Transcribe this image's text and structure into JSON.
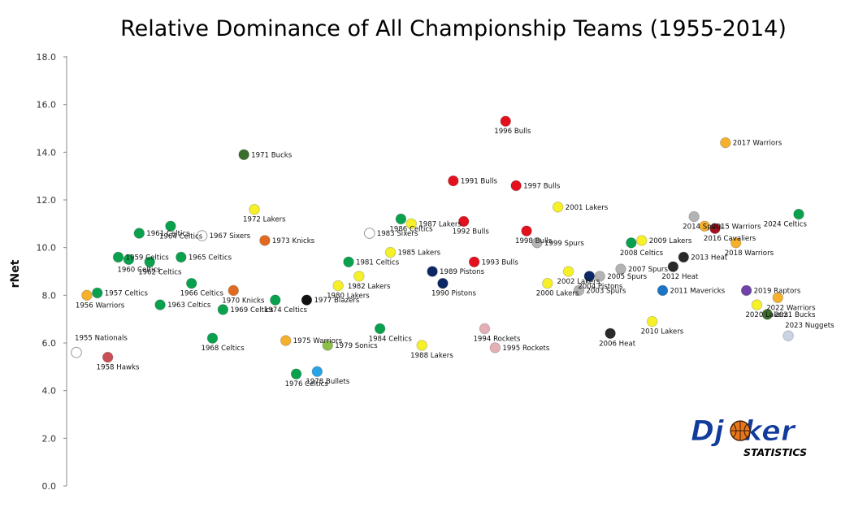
{
  "chart_data": {
    "type": "scatter",
    "title": "Relative Dominance of All Championship Teams (1955-2014)",
    "ylabel": "rNet",
    "ylim": [
      0,
      18
    ],
    "yticks": [
      "0.0",
      "2.0",
      "4.0",
      "6.0",
      "8.0",
      "10.0",
      "12.0",
      "14.0",
      "16.0",
      "18.0"
    ],
    "grid": false,
    "points": [
      {
        "label": "1955 Nationals",
        "x": 1955,
        "y": 5.6,
        "color": "#ffffff"
      },
      {
        "label": "1956 Warriors",
        "x": 1956,
        "y": 8.0,
        "color": "#f5b02e"
      },
      {
        "label": "1957 Celtics",
        "x": 1957,
        "y": 8.1,
        "color": "#0aa14e"
      },
      {
        "label": "1958 Hawks",
        "x": 1958,
        "y": 5.4,
        "color": "#c74f55"
      },
      {
        "label": "1959 Celtics",
        "x": 1959,
        "y": 9.6,
        "color": "#0aa14e"
      },
      {
        "label": "1960 Celtics",
        "x": 1960,
        "y": 9.5,
        "color": "#0aa14e"
      },
      {
        "label": "1961 Celtics",
        "x": 1961,
        "y": 10.6,
        "color": "#0aa14e"
      },
      {
        "label": "1962 Celtics",
        "x": 1962,
        "y": 9.4,
        "color": "#0aa14e"
      },
      {
        "label": "1963 Celtics",
        "x": 1963,
        "y": 7.6,
        "color": "#0aa14e"
      },
      {
        "label": "1964 Celtics",
        "x": 1964,
        "y": 10.9,
        "color": "#0aa14e"
      },
      {
        "label": "1965 Celtics",
        "x": 1965,
        "y": 9.6,
        "color": "#0aa14e"
      },
      {
        "label": "1966 Celtics",
        "x": 1966,
        "y": 8.5,
        "color": "#0aa14e"
      },
      {
        "label": "1967 Sixers",
        "x": 1967,
        "y": 10.5,
        "color": "#ffffff"
      },
      {
        "label": "1968 Celtics",
        "x": 1968,
        "y": 6.2,
        "color": "#0aa14e"
      },
      {
        "label": "1969 Celtics",
        "x": 1969,
        "y": 7.4,
        "color": "#0aa14e"
      },
      {
        "label": "1970 Knicks",
        "x": 1970,
        "y": 8.2,
        "color": "#e06b1f"
      },
      {
        "label": "1971 Bucks",
        "x": 1971,
        "y": 13.9,
        "color": "#3b6e2a"
      },
      {
        "label": "1972 Lakers",
        "x": 1972,
        "y": 11.6,
        "color": "#f6f028"
      },
      {
        "label": "1973 Knicks",
        "x": 1973,
        "y": 10.3,
        "color": "#e06b1f"
      },
      {
        "label": "1974 Celtics",
        "x": 1974,
        "y": 7.8,
        "color": "#0aa14e"
      },
      {
        "label": "1975 Warriors",
        "x": 1975,
        "y": 6.1,
        "color": "#f5b02e"
      },
      {
        "label": "1976 Celtics",
        "x": 1976,
        "y": 4.7,
        "color": "#0aa14e"
      },
      {
        "label": "1977 Blazers",
        "x": 1977,
        "y": 7.8,
        "color": "#111111"
      },
      {
        "label": "1978 Bullets",
        "x": 1978,
        "y": 4.8,
        "color": "#28a3e6"
      },
      {
        "label": "1979 Sonics",
        "x": 1979,
        "y": 5.9,
        "color": "#8cc04b"
      },
      {
        "label": "1980 Lakers",
        "x": 1980,
        "y": 8.4,
        "color": "#f6f028"
      },
      {
        "label": "1981 Celtics",
        "x": 1981,
        "y": 9.4,
        "color": "#0aa14e"
      },
      {
        "label": "1982 Lakers",
        "x": 1982,
        "y": 8.8,
        "color": "#f6f028"
      },
      {
        "label": "1983 Sixers",
        "x": 1983,
        "y": 10.6,
        "color": "#ffffff"
      },
      {
        "label": "1984 Celtics",
        "x": 1984,
        "y": 6.6,
        "color": "#0aa14e"
      },
      {
        "label": "1985 Lakers",
        "x": 1985,
        "y": 9.8,
        "color": "#f6f028"
      },
      {
        "label": "1986 Celtics",
        "x": 1986,
        "y": 11.2,
        "color": "#0aa14e"
      },
      {
        "label": "1987 Lakers",
        "x": 1987,
        "y": 11.0,
        "color": "#f6f028"
      },
      {
        "label": "1988 Lakers",
        "x": 1988,
        "y": 5.9,
        "color": "#f6f028"
      },
      {
        "label": "1989 Pistons",
        "x": 1989,
        "y": 9.0,
        "color": "#0c2765"
      },
      {
        "label": "1990 Pistons",
        "x": 1990,
        "y": 8.5,
        "color": "#0c2765"
      },
      {
        "label": "1991 Bulls",
        "x": 1991,
        "y": 12.8,
        "color": "#e3101e"
      },
      {
        "label": "1992 Bulls",
        "x": 1992,
        "y": 11.1,
        "color": "#e3101e"
      },
      {
        "label": "1993 Bulls",
        "x": 1993,
        "y": 9.4,
        "color": "#e3101e"
      },
      {
        "label": "1994 Rockets",
        "x": 1994,
        "y": 6.6,
        "color": "#e3b0b6"
      },
      {
        "label": "1995 Rockets",
        "x": 1995,
        "y": 5.8,
        "color": "#e3b0b6"
      },
      {
        "label": "1996 Bulls",
        "x": 1996,
        "y": 15.3,
        "color": "#e3101e"
      },
      {
        "label": "1997 Bulls",
        "x": 1997,
        "y": 12.6,
        "color": "#e3101e"
      },
      {
        "label": "1998 Bulls",
        "x": 1998,
        "y": 10.7,
        "color": "#e3101e"
      },
      {
        "label": "1999 Spurs",
        "x": 1999,
        "y": 10.2,
        "color": "#b3b3b3"
      },
      {
        "label": "2000 Lakers",
        "x": 2000,
        "y": 8.5,
        "color": "#f6f028"
      },
      {
        "label": "2001 Lakers",
        "x": 2001,
        "y": 11.7,
        "color": "#f6f028"
      },
      {
        "label": "2002 Lakers",
        "x": 2002,
        "y": 9.0,
        "color": "#f6f028"
      },
      {
        "label": "2003 Spurs",
        "x": 2003,
        "y": 8.2,
        "color": "#b3b3b3"
      },
      {
        "label": "2004 Pistons",
        "x": 2004,
        "y": 8.8,
        "color": "#0c2765"
      },
      {
        "label": "2005 Spurs",
        "x": 2005,
        "y": 8.8,
        "color": "#b3b3b3"
      },
      {
        "label": "2006 Heat",
        "x": 2006,
        "y": 6.4,
        "color": "#2a2a2a"
      },
      {
        "label": "2007 Spurs",
        "x": 2007,
        "y": 9.1,
        "color": "#b3b3b3"
      },
      {
        "label": "2008 Celtics",
        "x": 2008,
        "y": 10.2,
        "color": "#0aa14e"
      },
      {
        "label": "2009 Lakers",
        "x": 2009,
        "y": 10.3,
        "color": "#f6f028"
      },
      {
        "label": "2010 Lakers",
        "x": 2010,
        "y": 6.9,
        "color": "#f6f028"
      },
      {
        "label": "2011 Mavericks",
        "x": 2011,
        "y": 8.2,
        "color": "#1c74c4"
      },
      {
        "label": "2012 Heat",
        "x": 2012,
        "y": 9.2,
        "color": "#2a2a2a"
      },
      {
        "label": "2013 Heat",
        "x": 2013,
        "y": 9.6,
        "color": "#2a2a2a"
      },
      {
        "label": "2014 Spurs",
        "x": 2014,
        "y": 11.3,
        "color": "#b3b3b3"
      },
      {
        "label": "2015 Warriors",
        "x": 2015,
        "y": 10.9,
        "color": "#f5b02e"
      },
      {
        "label": "2016 Cavaliers",
        "x": 2016,
        "y": 10.8,
        "color": "#a3111e"
      },
      {
        "label": "2017 Warriors",
        "x": 2017,
        "y": 14.4,
        "color": "#f5b02e"
      },
      {
        "label": "2018 Warriors",
        "x": 2018,
        "y": 10.2,
        "color": "#f5b02e"
      },
      {
        "label": "2019 Raptors",
        "x": 2019,
        "y": 8.2,
        "color": "#7044a6"
      },
      {
        "label": "2020 Lakers",
        "x": 2020,
        "y": 7.6,
        "color": "#f6f028"
      },
      {
        "label": "2021 Bucks",
        "x": 2021,
        "y": 7.2,
        "color": "#3b6e2a"
      },
      {
        "label": "2022 Warriors",
        "x": 2022,
        "y": 7.9,
        "color": "#f5b02e"
      },
      {
        "label": "2023 Nuggets",
        "x": 2023,
        "y": 6.3,
        "color": "#c9d3e3"
      },
      {
        "label": "2024 Celtics",
        "x": 2024,
        "y": 11.4,
        "color": "#0aa14e"
      }
    ]
  },
  "logo": {
    "main_pre": "Dj",
    "main_post": "ker",
    "sub": "STATISTICS",
    "ball_color": "#e8761c"
  }
}
